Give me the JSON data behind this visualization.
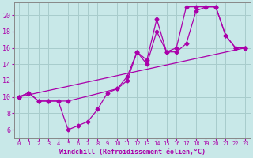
{
  "xlabel": "Windchill (Refroidissement éolien,°C)",
  "bg_color": "#c8e8e8",
  "grid_color": "#a8cccc",
  "line_color": "#aa00aa",
  "spine_color": "#888888",
  "xlim": [
    -0.5,
    23.5
  ],
  "ylim": [
    5,
    21.5
  ],
  "yticks": [
    6,
    8,
    10,
    12,
    14,
    16,
    18,
    20
  ],
  "xticks": [
    0,
    1,
    2,
    3,
    4,
    5,
    6,
    7,
    8,
    9,
    10,
    11,
    12,
    13,
    14,
    15,
    16,
    17,
    18,
    19,
    20,
    21,
    22,
    23
  ],
  "curve1_x": [
    0,
    1,
    2,
    3,
    4,
    5,
    6,
    7,
    8,
    9,
    10,
    11,
    12,
    13,
    14,
    15,
    16,
    17,
    18,
    19,
    20,
    21,
    22,
    23
  ],
  "curve1_y": [
    10.0,
    10.5,
    9.5,
    9.5,
    9.5,
    6.0,
    6.5,
    7.0,
    8.5,
    10.5,
    11.0,
    12.0,
    15.5,
    14.0,
    18.0,
    15.5,
    15.5,
    16.5,
    20.5,
    21.0,
    21.0,
    17.5,
    16.0,
    16.0
  ],
  "curve2_x": [
    0,
    1,
    2,
    3,
    4,
    5,
    10,
    11,
    12,
    13,
    14,
    15,
    16,
    17,
    18,
    19,
    20,
    21,
    22,
    23
  ],
  "curve2_y": [
    10.0,
    10.5,
    9.5,
    9.5,
    9.5,
    9.5,
    11.0,
    12.5,
    15.5,
    14.5,
    19.5,
    15.5,
    16.0,
    21.0,
    21.0,
    21.0,
    21.0,
    17.5,
    16.0,
    16.0
  ],
  "curve3_x": [
    0,
    23
  ],
  "curve3_y": [
    10.0,
    16.0
  ],
  "marker_style": "D",
  "marker_size": 2.5,
  "linewidth": 0.9,
  "xlabel_fontsize": 6,
  "tick_fontsize": 5
}
